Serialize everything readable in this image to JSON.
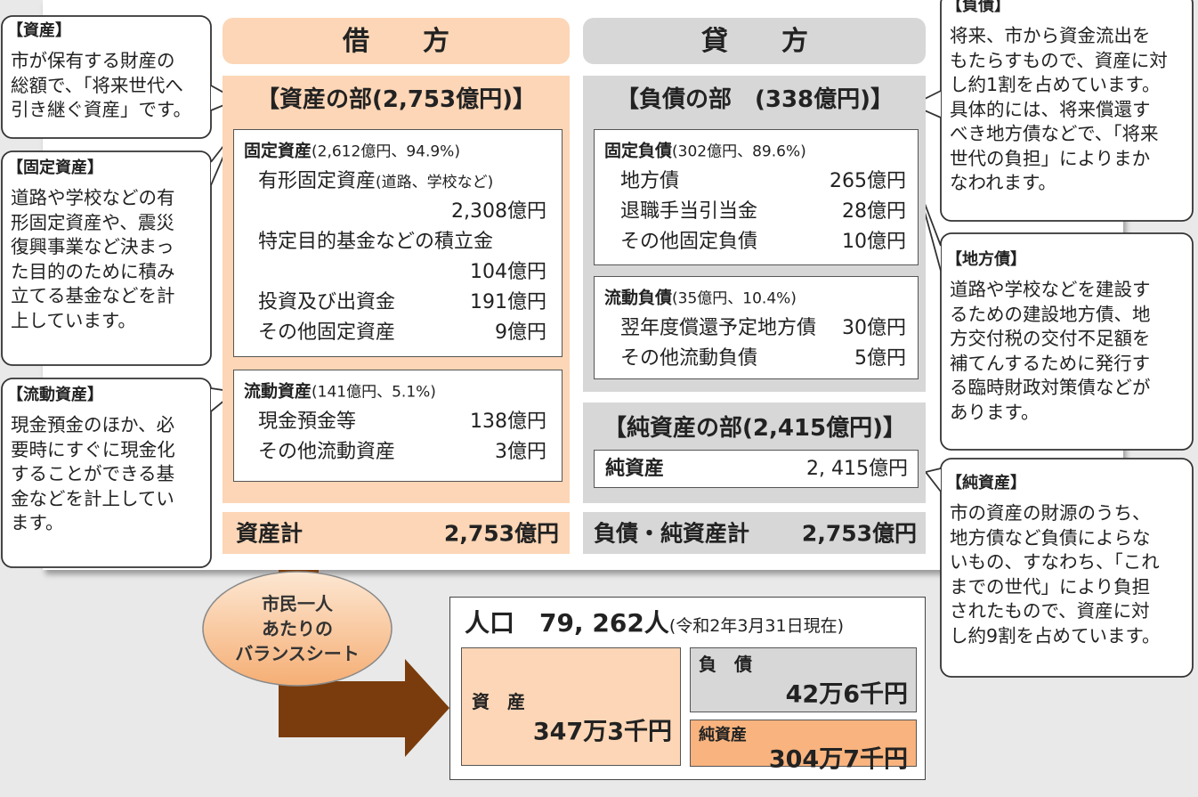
{
  "callouts_left": [
    {
      "title": "【資産】",
      "lines": [
        "市が保有する財産の",
        "総額で、「将来世代へ",
        "引き継ぐ資産」です。"
      ]
    },
    {
      "title": "【固定資産】",
      "lines": [
        "道路や学校などの有",
        "形固定資産や、震災",
        "復興事業など決まっ",
        "た目的のために積み",
        "立てる基金などを計",
        "上しています。"
      ]
    },
    {
      "title": "【流動資産】",
      "lines": [
        "現金預金のほか、必",
        "要時にすぐに現金化",
        "することができる基",
        "金などを計上してい",
        "ます。"
      ]
    }
  ],
  "callouts_right": [
    {
      "title": "【負債】",
      "lines": [
        "将来、市から資金流出を",
        "もたらすもので、資産に対",
        "し約1割を占めています。",
        "具体的には、将来償還す",
        "べき地方債などで、「将来",
        "世代の負担」によりまか",
        "なわれます。"
      ]
    },
    {
      "title": "【地方債】",
      "lines": [
        "道路や学校などを建設す",
        "るための建設地方債、地",
        "方交付税の交付不足額を",
        "補てんするために発行す",
        "る臨時財政対策債などが",
        "あります。"
      ]
    },
    {
      "title": "【純資産】",
      "lines": [
        "市の資産の財源のうち、",
        "地方債など負債によらな",
        "いもの、すなわち、「これ",
        "までの世代」により負担",
        "されたもので、資産に対",
        "し約9割を占めています。"
      ]
    }
  ],
  "debit": {
    "header": "借　　方",
    "section": "【資産の部(2,753億円)】",
    "boxes": [
      {
        "title": "固定資産",
        "detail": "(2,612億円、94.9%)",
        "items": [
          {
            "label": "有形固定資産",
            "note": "(道路、学校など)",
            "value": "2,308億円"
          },
          {
            "label": "特定目的基金などの積立金",
            "value": "104億円"
          },
          {
            "label": "投資及び出資金",
            "value": "191億円"
          },
          {
            "label": "その他固定資産",
            "value": "9億円"
          }
        ]
      },
      {
        "title": "流動資産",
        "detail": "(141億円、5.1%)",
        "items": [
          {
            "label": "現金預金等",
            "value": "138億円"
          },
          {
            "label": "その他流動資産",
            "value": "3億円"
          }
        ]
      }
    ],
    "total_label": "資産計",
    "total_value": "2,753億円"
  },
  "credit": {
    "header": "貸　　方",
    "section": "【負債の部　(338億円)】",
    "boxes": [
      {
        "title": "固定負債",
        "detail": "(302億円、89.6%)",
        "items": [
          {
            "label": "地方債",
            "value": "265億円"
          },
          {
            "label": "退職手当引当金",
            "value": "28億円"
          },
          {
            "label": "その他固定負債",
            "value": "10億円"
          }
        ]
      },
      {
        "title": "流動負債",
        "detail": "(35億円、10.4%)",
        "items": [
          {
            "label": "翌年度償還予定地方債",
            "value": "30億円"
          },
          {
            "label": "その他流動負債",
            "value": "5億円"
          }
        ]
      }
    ],
    "net_section": "【純資産の部(2,415億円)】",
    "net_label": "純資産",
    "net_value": "2, 415億円",
    "total_label": "負債・純資産計",
    "total_value": "2,753億円"
  },
  "per_capita": {
    "bubble": [
      "市民一人",
      "あたりの",
      "バランスシート"
    ],
    "population": "人口　79, 262人",
    "as_of": "(令和2年3月31日現在)",
    "assets_label": "資　産",
    "assets_value": "347万3千円",
    "liabilities_label": "負　債",
    "liabilities_value": "42万6千円",
    "net_label": "純資産",
    "net_value": "304万7千円"
  }
}
